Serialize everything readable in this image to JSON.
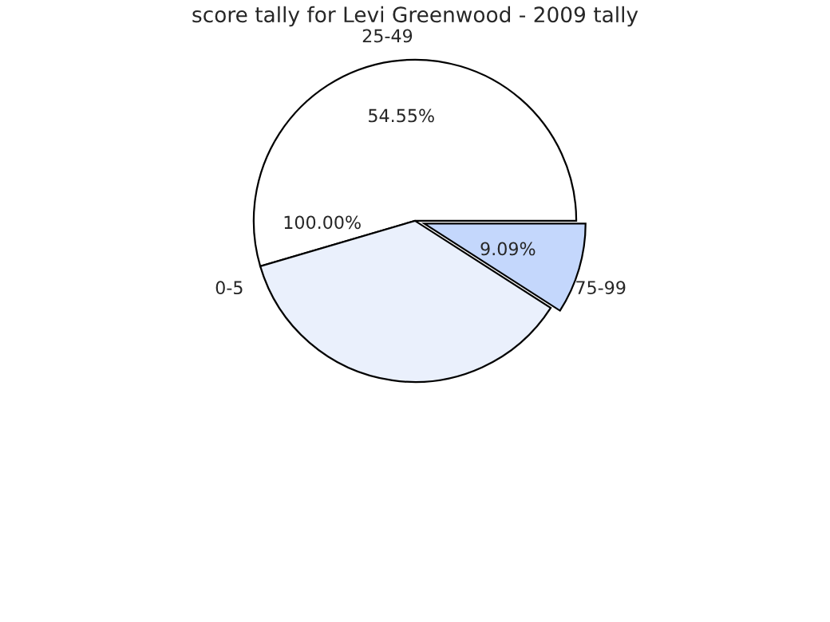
{
  "chart_data": {
    "type": "pie",
    "title": "score tally for Levi Greenwood - 2009 tally",
    "categories": [
      "25-49",
      "0-5",
      null,
      "75-99"
    ],
    "values": [
      54.55,
      0,
      36.36,
      9.09
    ],
    "value_labels": [
      "54.55%",
      null,
      null,
      "9.09%"
    ],
    "annotations": [
      "100.00%"
    ],
    "colors": [
      "#ffffff",
      "#ffffff",
      "#eaf0fc",
      "#c4d7fc"
    ]
  }
}
